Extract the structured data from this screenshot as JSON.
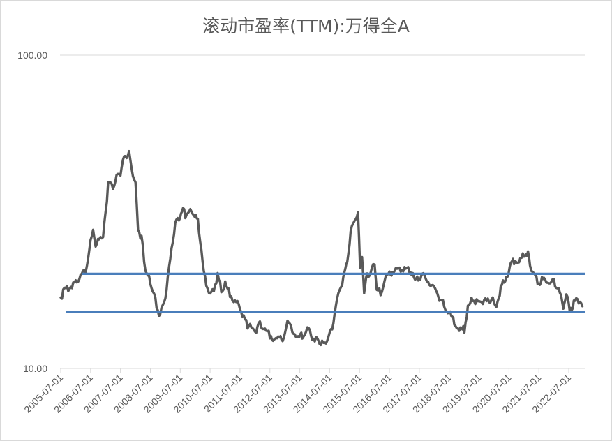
{
  "chart_data": {
    "type": "line",
    "title": "滚动市盈率(TTM):万得全A",
    "y_scale": "log",
    "ylim": [
      10,
      100
    ],
    "y_ticks": [
      "10.00",
      "100.00"
    ],
    "x_tick_labels": [
      "2005-07-01",
      "2006-07-01",
      "2007-07-01",
      "2008-07-01",
      "2009-07-01",
      "2010-07-01",
      "2011-07-01",
      "2012-07-01",
      "2013-07-01",
      "2014-07-01",
      "2015-07-01",
      "2016-07-01",
      "2017-07-01",
      "2018-07-01",
      "2019-07-01",
      "2020-07-01",
      "2021-07-01",
      "2022-07-01"
    ],
    "grid": "horizontal",
    "colors": {
      "series": "#595959",
      "reference": "#4a7ebb",
      "grid": "#d9d9d9",
      "text": "#595959"
    },
    "series": [
      {
        "x": [
          "2005-07-01",
          "2005-08-01",
          "2005-10-01",
          "2005-12-01",
          "2006-01-15",
          "2006-03-01",
          "2006-05-01",
          "2006-06-01",
          "2006-07-01",
          "2006-08-01",
          "2006-09-01",
          "2006-10-15",
          "2006-12-01",
          "2007-01-01",
          "2007-02-01",
          "2007-04-01",
          "2007-05-15",
          "2007-07-01",
          "2007-08-01",
          "2007-09-15",
          "2007-10-15",
          "2007-11-15",
          "2008-01-01",
          "2008-02-01",
          "2008-03-15",
          "2008-05-01",
          "2008-06-15",
          "2008-08-01",
          "2008-09-15",
          "2008-10-28",
          "2008-12-01",
          "2009-01-15",
          "2009-03-01",
          "2009-05-01",
          "2009-06-15",
          "2009-08-04",
          "2009-09-01",
          "2009-11-01",
          "2009-12-15",
          "2010-02-01",
          "2010-04-15",
          "2010-05-15",
          "2010-07-01",
          "2010-08-15",
          "2010-10-01",
          "2010-11-15",
          "2011-01-01",
          "2011-03-01",
          "2011-05-01",
          "2011-07-01",
          "2011-08-15",
          "2011-10-01",
          "2011-12-01",
          "2012-01-15",
          "2012-03-01",
          "2012-05-01",
          "2012-07-01",
          "2012-09-01",
          "2012-12-03",
          "2013-02-01",
          "2013-04-01",
          "2013-06-25",
          "2013-08-01",
          "2013-10-01",
          "2013-12-01",
          "2014-01-15",
          "2014-03-15",
          "2014-05-01",
          "2014-06-15",
          "2014-08-01",
          "2014-09-15",
          "2014-11-01",
          "2014-12-15",
          "2015-02-01",
          "2015-03-15",
          "2015-04-15",
          "2015-06-12",
          "2015-07-08",
          "2015-08-01",
          "2015-08-26",
          "2015-10-01",
          "2015-11-15",
          "2016-01-01",
          "2016-01-28",
          "2016-03-15",
          "2016-05-01",
          "2016-07-01",
          "2016-09-01",
          "2016-11-15",
          "2017-01-01",
          "2017-03-01",
          "2017-05-10",
          "2017-07-01",
          "2017-09-01",
          "2017-11-15",
          "2018-01-24",
          "2018-03-15",
          "2018-05-01",
          "2018-07-01",
          "2018-09-01",
          "2018-11-01",
          "2019-01-03",
          "2019-02-15",
          "2019-04-15",
          "2019-06-01",
          "2019-08-01",
          "2019-10-01",
          "2019-12-01",
          "2020-01-15",
          "2020-03-23",
          "2020-05-01",
          "2020-07-10",
          "2020-09-01",
          "2020-11-01",
          "2021-01-01",
          "2021-02-18",
          "2021-03-15",
          "2021-05-01",
          "2021-07-01",
          "2021-09-01",
          "2021-11-01",
          "2022-01-01",
          "2022-03-01",
          "2022-04-26",
          "2022-06-01",
          "2022-07-15",
          "2022-09-01",
          "2022-10-31",
          "2022-12-15"
        ],
        "values": [
          16.6,
          17.2,
          17.9,
          18.3,
          18.9,
          19.5,
          20.2,
          21.8,
          25.5,
          26.8,
          24.5,
          25.2,
          26.6,
          30.5,
          38.3,
          37.6,
          40.2,
          41.6,
          45.3,
          46.9,
          48.0,
          43.0,
          38.0,
          28.0,
          25.5,
          20.6,
          19.0,
          17.5,
          15.6,
          14.3,
          15.8,
          17.3,
          22.5,
          28.5,
          30.0,
          32.0,
          30.5,
          31.3,
          31.0,
          29.0,
          20.6,
          18.2,
          17.0,
          17.8,
          19.5,
          17.7,
          18.2,
          17.1,
          16.0,
          15.6,
          14.2,
          13.6,
          13.0,
          12.9,
          13.8,
          13.1,
          12.6,
          12.2,
          12.3,
          13.9,
          13.2,
          12.2,
          12.6,
          13.1,
          12.4,
          12.3,
          11.9,
          11.9,
          12.3,
          13.5,
          15.5,
          17.8,
          19.0,
          22.0,
          26.5,
          29.0,
          30.5,
          21.0,
          22.0,
          17.5,
          19.5,
          20.3,
          21.5,
          17.5,
          17.3,
          18.5,
          20.1,
          20.0,
          20.5,
          20.4,
          20.5,
          18.6,
          19.1,
          19.5,
          18.2,
          17.5,
          16.2,
          15.7,
          14.8,
          13.9,
          13.0,
          13.2,
          15.3,
          16.6,
          16.1,
          16.2,
          16.0,
          16.6,
          15.4,
          17.8,
          18.6,
          20.6,
          21.8,
          21.4,
          22.8,
          23.2,
          21.1,
          19.7,
          18.5,
          19.0,
          18.5,
          18.5,
          17.6,
          15.5,
          16.8,
          15.2,
          16.0,
          16.3,
          15.8
        ]
      }
    ],
    "reference_lines": [
      20.05,
      15.15
    ]
  }
}
